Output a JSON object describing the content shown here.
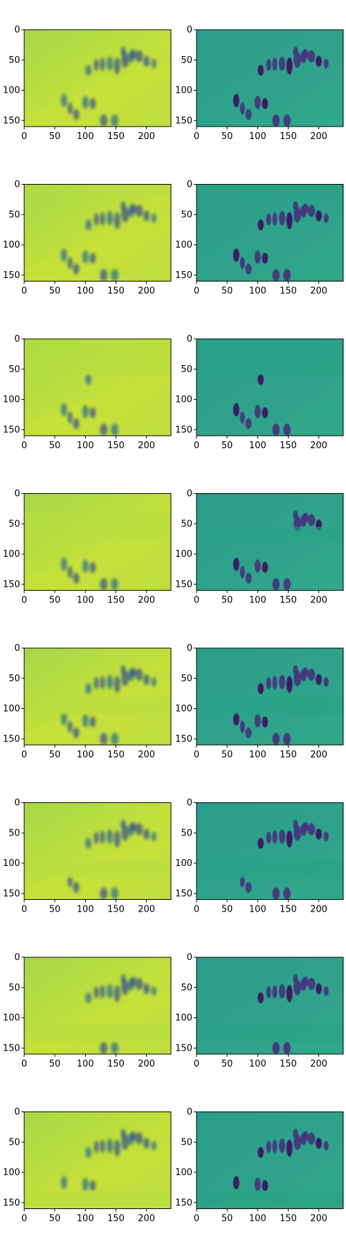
{
  "chart_data": {
    "type": "heatmap",
    "layout": {
      "rows": 8,
      "cols": 2
    },
    "colormap": "viridis",
    "x_ticks": [
      0,
      50,
      100,
      150,
      200
    ],
    "y_ticks": [
      0,
      50,
      100,
      150
    ],
    "xlim": [
      0,
      240
    ],
    "ylim": [
      160,
      0
    ],
    "panels_description": "Left column: blurred reconstruction of a crowd scene; right column: sharper frame with horizontal band artifacts at varying rows.",
    "band_rows_right": [
      [
        0,
        0
      ],
      [
        0,
        18
      ],
      [
        0,
        60
      ],
      [
        55,
        80
      ],
      [
        80,
        110
      ],
      [
        95,
        125
      ],
      [
        110,
        140
      ],
      [
        130,
        160
      ]
    ],
    "band_rows_left": [
      [
        0,
        0
      ],
      [
        0,
        18
      ],
      [
        0,
        60
      ],
      [
        30,
        80
      ],
      [
        80,
        110
      ],
      [
        95,
        125
      ],
      [
        110,
        140
      ],
      [
        130,
        160
      ]
    ]
  }
}
